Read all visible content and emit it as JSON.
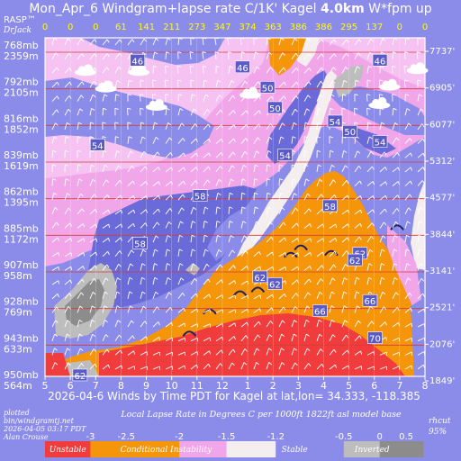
{
  "header": {
    "title_pre": "Mon_Apr_6 Windgram+lapse rate C/1K'  Kagel ",
    "title_height": "4.0km",
    "title_post": "  W*fpm up",
    "rasp": "RASP™",
    "drjack": "DrJack"
  },
  "footer": {
    "xlabel": "2026-04-6 Winds by Time PDT for Kagel at lat,lon= 34.333, -118.385",
    "legend_title": "Local Lapse Rate in Degrees C per 1000ft   1822ft asl model base",
    "plotted": [
      "plotted",
      "bin/windgramtj.net",
      "2026-04-05 03:17 PDT",
      "Alan Crouse"
    ],
    "rhcut": [
      "rhcut",
      "95%"
    ]
  },
  "chart_data": {
    "type": "heatmap",
    "title": "Mon_Apr_6 Windgram+lapse rate C/1K' Kagel 4.0km W*fpm up",
    "xlabel": "2026-04-6 Winds by Time PDT for Kagel at lat,lon= 34.333, -118.385",
    "x_ticks": [
      "5",
      "6",
      "7",
      "8",
      "9",
      "10",
      "11",
      "12",
      "1",
      "2",
      "3",
      "4",
      "5",
      "6",
      "7",
      "8"
    ],
    "wstar_fpm": [
      "0",
      "0",
      "0",
      "61",
      "141",
      "211",
      "273",
      "347",
      "374",
      "363",
      "386",
      "386",
      "295",
      "137",
      "0",
      "0"
    ],
    "y_left_mb": [
      "768mb",
      "792mb",
      "816mb",
      "839mb",
      "862mb",
      "885mb",
      "907mb",
      "928mb",
      "943mb",
      "950mb"
    ],
    "y_left_m": [
      "2359m",
      "2105m",
      "1852m",
      "1619m",
      "1395m",
      "1172m",
      "958m",
      "769m",
      "633m",
      "564m"
    ],
    "y_right_ft": [
      "7737'",
      "6905'",
      "6077'",
      "5312'",
      "4577'",
      "3844'",
      "3141'",
      "2521'",
      "2076'",
      "1849'"
    ],
    "wind_speed_labels": [
      "46",
      "46",
      "46",
      "50",
      "50",
      "50",
      "54",
      "54",
      "54",
      "54",
      "58",
      "58",
      "58",
      "62",
      "62",
      "62",
      "62",
      "66",
      "66",
      "70",
      "62"
    ],
    "legend_ticks": [
      "-3",
      "-2.5",
      "-2",
      "-1.5",
      "-1.2",
      "-0.5",
      "0",
      "0.5"
    ],
    "legend_categories": [
      "Unstable",
      "Conditional Instability",
      "Stable",
      "Inverted"
    ],
    "colors": {
      "background": "#8b8bea",
      "unstable": "#f03c3c",
      "conditional": "#f5960a",
      "conditional_light": "#f2a6ea",
      "light_pink": "#f5c2f2",
      "pale": "#f4eeee",
      "stable": "#8b8bea",
      "stable_dark": "#6a6ad8",
      "inverted_light": "#bdbdbd",
      "inverted": "#8c8c8c",
      "wstar_text": "#ffff00"
    }
  }
}
